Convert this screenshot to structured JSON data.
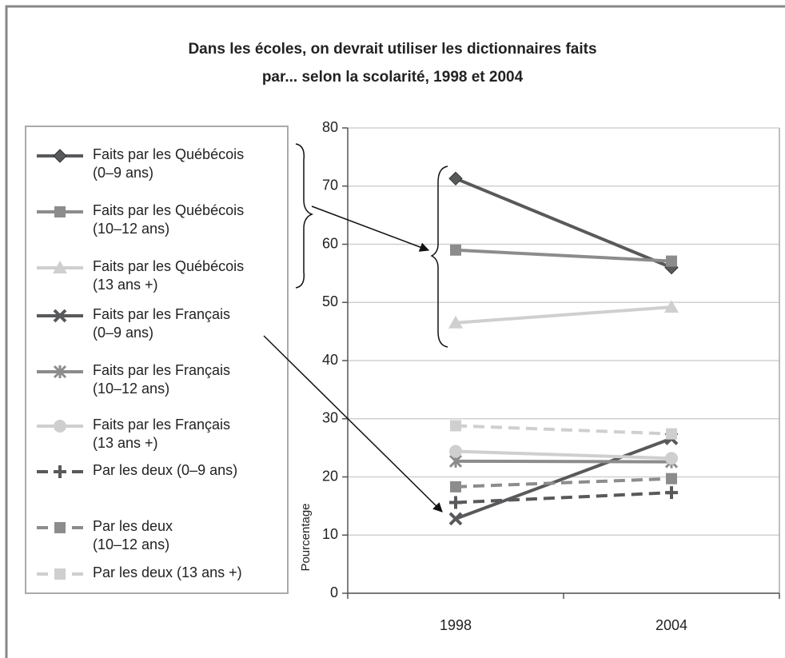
{
  "chart_data": {
    "type": "line",
    "title": "Dans les écoles, on devrait utiliser les dictionnaires faits\npar... selon la scolarité, 1998 et 2004",
    "y_label": "Pourcentage",
    "categories": [
      "1998",
      "2004"
    ],
    "ylim": [
      0,
      80
    ],
    "yticks": [
      0,
      10,
      20,
      30,
      40,
      50,
      60,
      70,
      80
    ],
    "grid": true,
    "legend": "left",
    "series": [
      {
        "name": "Faits par les Québécois\n(0–9 ans)",
        "color": "#58595b",
        "marker": "diamond",
        "dashed": false,
        "values": [
          71.3,
          56
        ]
      },
      {
        "name": "Faits par les Québécois\n(10–12 ans)",
        "color": "#8c8c8c",
        "marker": "square",
        "dashed": false,
        "values": [
          59,
          57.1
        ]
      },
      {
        "name": "Faits par les Québécois\n(13 ans +)",
        "color": "#cfcfcf",
        "marker": "triangle",
        "dashed": false,
        "values": [
          46.5,
          49.2
        ]
      },
      {
        "name": "Faits par les Français\n(0–9 ans)",
        "color": "#58595b",
        "marker": "x",
        "dashed": false,
        "values": [
          12.8,
          26.6
        ]
      },
      {
        "name": "Faits par les Français\n(10–12 ans)",
        "color": "#8c8c8c",
        "marker": "asterisk",
        "dashed": false,
        "values": [
          22.7,
          22.6
        ]
      },
      {
        "name": "Faits par les Français\n(13 ans +)",
        "color": "#cfcfcf",
        "marker": "circle",
        "dashed": false,
        "values": [
          24.4,
          23.2
        ]
      },
      {
        "name": "Par les deux (0–9 ans)",
        "color": "#58595b",
        "marker": "plus",
        "dashed": true,
        "values": [
          15.6,
          17.3
        ]
      },
      {
        "name": "Par les deux\n(10–12 ans)",
        "color": "#8c8c8c",
        "marker": "square",
        "dashed": true,
        "values": [
          18.3,
          19.7
        ]
      },
      {
        "name": "Par les deux (13 ans +)",
        "color": "#cfcfcf",
        "marker": "square",
        "dashed": true,
        "values": [
          28.8,
          27.4
        ]
      }
    ]
  }
}
